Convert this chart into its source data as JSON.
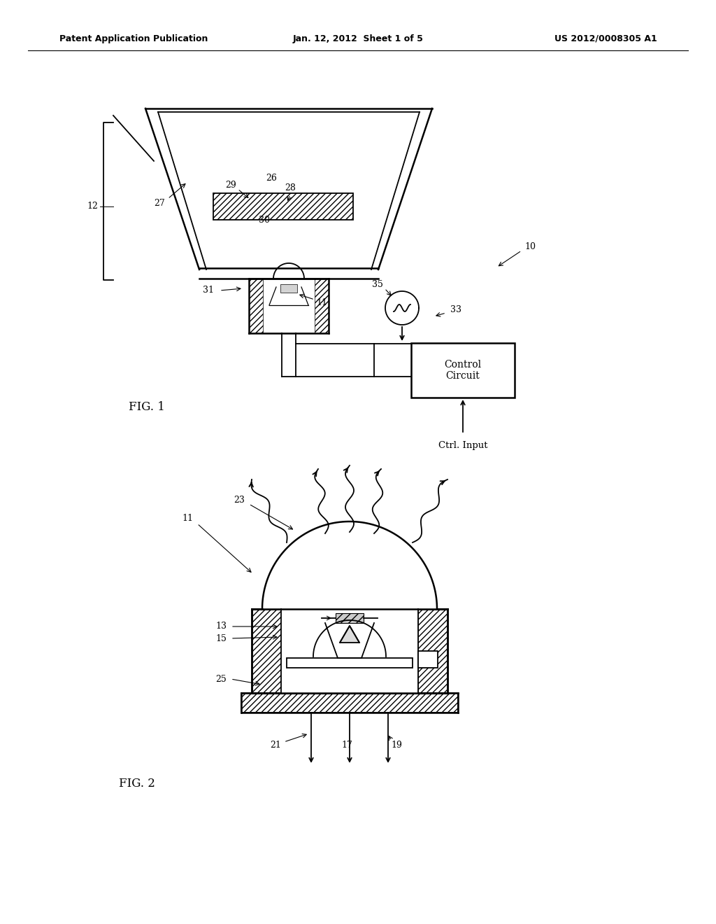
{
  "bg_color": "#ffffff",
  "line_color": "#000000",
  "header": {
    "left": "Patent Application Publication",
    "center": "Jan. 12, 2012  Sheet 1 of 5",
    "right": "US 2012/0008305 A1"
  },
  "fig1_label": "FIG. 1",
  "fig2_label": "FIG. 2"
}
